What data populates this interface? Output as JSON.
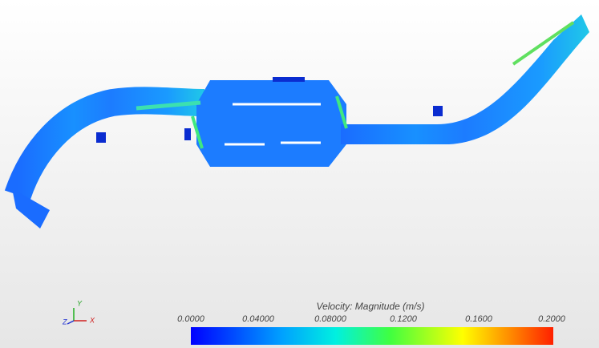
{
  "colorbar": {
    "title": "Velocity: Magnitude (m/s)",
    "ticks": [
      "0.0000",
      "0.04000",
      "0.08000",
      "0.1200",
      "0.1600",
      "0.2000"
    ]
  },
  "triad": {
    "y": "Y",
    "z": "Z",
    "x": "X"
  }
}
